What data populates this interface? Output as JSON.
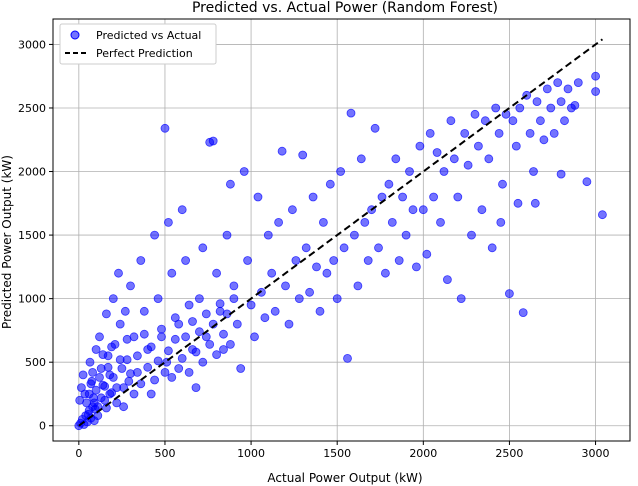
{
  "chart_data": {
    "type": "scatter",
    "title": "Predicted vs. Actual Power (Random Forest)",
    "xlabel": "Actual Power Output (kW)",
    "ylabel": "Predicted Power Output (kW)",
    "xlim": [
      -150,
      3200
    ],
    "ylim": [
      -120,
      3200
    ],
    "xticks": [
      0,
      500,
      1000,
      1500,
      2000,
      2500,
      3000
    ],
    "yticks": [
      0,
      500,
      1000,
      1500,
      2000,
      2500,
      3000
    ],
    "grid": true,
    "legend_position": "upper-left",
    "series": [
      {
        "name": "Predicted vs Actual",
        "kind": "scatter",
        "color": "#0000ff",
        "opacity": 0.55,
        "points": [
          [
            0,
            0
          ],
          [
            10,
            20
          ],
          [
            20,
            50
          ],
          [
            30,
            10
          ],
          [
            40,
            80
          ],
          [
            50,
            30
          ],
          [
            60,
            120
          ],
          [
            70,
            60
          ],
          [
            80,
            150
          ],
          [
            90,
            40
          ],
          [
            5,
            200
          ],
          [
            15,
            300
          ],
          [
            25,
            400
          ],
          [
            35,
            250
          ],
          [
            45,
            180
          ],
          [
            55,
            90
          ],
          [
            65,
            500
          ],
          [
            75,
            350
          ],
          [
            85,
            220
          ],
          [
            95,
            130
          ],
          [
            100,
            600
          ],
          [
            110,
            80
          ],
          [
            120,
            700
          ],
          [
            130,
            450
          ],
          [
            140,
            320
          ],
          [
            150,
            200
          ],
          [
            160,
            880
          ],
          [
            170,
            550
          ],
          [
            180,
            400
          ],
          [
            190,
            260
          ],
          [
            200,
            1000
          ],
          [
            210,
            640
          ],
          [
            220,
            300
          ],
          [
            230,
            1200
          ],
          [
            240,
            800
          ],
          [
            250,
            450
          ],
          [
            260,
            150
          ],
          [
            270,
            900
          ],
          [
            280,
            520
          ],
          [
            290,
            350
          ],
          [
            300,
            1100
          ],
          [
            320,
            700
          ],
          [
            340,
            420
          ],
          [
            360,
            1300
          ],
          [
            380,
            900
          ],
          [
            400,
            600
          ],
          [
            420,
            250
          ],
          [
            440,
            1500
          ],
          [
            460,
            1000
          ],
          [
            480,
            700
          ],
          [
            500,
            2340
          ],
          [
            510,
            500
          ],
          [
            520,
            1600
          ],
          [
            540,
            1200
          ],
          [
            560,
            850
          ],
          [
            580,
            450
          ],
          [
            600,
            1700
          ],
          [
            620,
            1300
          ],
          [
            640,
            950
          ],
          [
            660,
            600
          ],
          [
            680,
            300
          ],
          [
            700,
            1000
          ],
          [
            720,
            1400
          ],
          [
            740,
            700
          ],
          [
            760,
            2230
          ],
          [
            780,
            2240
          ],
          [
            800,
            1200
          ],
          [
            820,
            900
          ],
          [
            840,
            600
          ],
          [
            860,
            1500
          ],
          [
            880,
            1900
          ],
          [
            900,
            1100
          ],
          [
            920,
            800
          ],
          [
            940,
            450
          ],
          [
            960,
            2000
          ],
          [
            980,
            1300
          ],
          [
            1000,
            950
          ],
          [
            1020,
            700
          ],
          [
            1040,
            1800
          ],
          [
            1060,
            1050
          ],
          [
            1080,
            850
          ],
          [
            1100,
            1500
          ],
          [
            1120,
            1200
          ],
          [
            1140,
            900
          ],
          [
            1160,
            1600
          ],
          [
            1180,
            2160
          ],
          [
            1200,
            1100
          ],
          [
            1220,
            800
          ],
          [
            1240,
            1700
          ],
          [
            1260,
            1300
          ],
          [
            1280,
            1000
          ],
          [
            1300,
            2130
          ],
          [
            1320,
            1400
          ],
          [
            1340,
            1050
          ],
          [
            1360,
            1800
          ],
          [
            1380,
            1250
          ],
          [
            1400,
            900
          ],
          [
            1420,
            1600
          ],
          [
            1440,
            1200
          ],
          [
            1460,
            1900
          ],
          [
            1480,
            1300
          ],
          [
            1500,
            1000
          ],
          [
            1520,
            2000
          ],
          [
            1540,
            1400
          ],
          [
            1560,
            530
          ],
          [
            1580,
            2460
          ],
          [
            1600,
            1500
          ],
          [
            1620,
            1100
          ],
          [
            1640,
            2100
          ],
          [
            1660,
            1600
          ],
          [
            1680,
            1300
          ],
          [
            1700,
            1700
          ],
          [
            1720,
            2340
          ],
          [
            1740,
            1400
          ],
          [
            1760,
            1800
          ],
          [
            1780,
            1200
          ],
          [
            1800,
            1900
          ],
          [
            1820,
            1600
          ],
          [
            1840,
            2100
          ],
          [
            1860,
            1300
          ],
          [
            1880,
            1800
          ],
          [
            1900,
            1500
          ],
          [
            1920,
            2000
          ],
          [
            1940,
            1700
          ],
          [
            1960,
            1250
          ],
          [
            1980,
            2200
          ],
          [
            2000,
            1700
          ],
          [
            2020,
            1350
          ],
          [
            2040,
            2300
          ],
          [
            2060,
            1800
          ],
          [
            2080,
            2150
          ],
          [
            2100,
            1600
          ],
          [
            2120,
            2000
          ],
          [
            2140,
            1150
          ],
          [
            2160,
            2400
          ],
          [
            2180,
            2100
          ],
          [
            2200,
            1800
          ],
          [
            2220,
            1000
          ],
          [
            2240,
            2300
          ],
          [
            2260,
            2050
          ],
          [
            2280,
            1500
          ],
          [
            2300,
            2450
          ],
          [
            2320,
            2200
          ],
          [
            2340,
            1700
          ],
          [
            2360,
            2400
          ],
          [
            2380,
            2100
          ],
          [
            2400,
            1400
          ],
          [
            2420,
            2500
          ],
          [
            2440,
            2300
          ],
          [
            2460,
            1900
          ],
          [
            2480,
            2450
          ],
          [
            2500,
            1040
          ],
          [
            2520,
            2400
          ],
          [
            2540,
            2200
          ],
          [
            2560,
            2500
          ],
          [
            2580,
            890
          ],
          [
            2600,
            2600
          ],
          [
            2620,
            2300
          ],
          [
            2640,
            2000
          ],
          [
            2660,
            2550
          ],
          [
            2680,
            2400
          ],
          [
            2700,
            2250
          ],
          [
            2720,
            2650
          ],
          [
            2740,
            2500
          ],
          [
            2760,
            2300
          ],
          [
            2780,
            2700
          ],
          [
            2800,
            2550
          ],
          [
            2820,
            2400
          ],
          [
            2840,
            2650
          ],
          [
            2860,
            2500
          ],
          [
            2900,
            2700
          ],
          [
            2950,
            1920
          ],
          [
            3000,
            2750
          ],
          [
            3040,
            1660
          ],
          [
            3000,
            2630
          ],
          [
            2880,
            2520
          ],
          [
            2800,
            1980
          ],
          [
            2650,
            1750
          ],
          [
            2550,
            1750
          ],
          [
            2450,
            1600
          ],
          [
            60,
            250
          ],
          [
            70,
            330
          ],
          [
            80,
            420
          ],
          [
            90,
            180
          ],
          [
            100,
            280
          ],
          [
            110,
            150
          ],
          [
            120,
            380
          ],
          [
            130,
            220
          ],
          [
            140,
            560
          ],
          [
            150,
            310
          ],
          [
            160,
            140
          ],
          [
            170,
            460
          ],
          [
            180,
            250
          ],
          [
            190,
            620
          ],
          [
            200,
            380
          ],
          [
            220,
            180
          ],
          [
            240,
            520
          ],
          [
            260,
            300
          ],
          [
            280,
            680
          ],
          [
            300,
            410
          ],
          [
            320,
            250
          ],
          [
            340,
            550
          ],
          [
            360,
            330
          ],
          [
            380,
            720
          ],
          [
            400,
            460
          ],
          [
            420,
            620
          ],
          [
            440,
            360
          ],
          [
            460,
            510
          ],
          [
            480,
            760
          ],
          [
            500,
            420
          ],
          [
            520,
            590
          ],
          [
            540,
            380
          ],
          [
            560,
            680
          ],
          [
            580,
            800
          ],
          [
            600,
            530
          ],
          [
            620,
            700
          ],
          [
            640,
            420
          ],
          [
            660,
            820
          ],
          [
            680,
            580
          ],
          [
            700,
            740
          ],
          [
            720,
            500
          ],
          [
            740,
            880
          ],
          [
            760,
            640
          ],
          [
            780,
            800
          ],
          [
            800,
            560
          ],
          [
            820,
            960
          ],
          [
            840,
            720
          ],
          [
            860,
            880
          ],
          [
            880,
            640
          ],
          [
            900,
            1000
          ]
        ]
      },
      {
        "name": "Perfect Prediction",
        "kind": "line",
        "color": "#000000",
        "dashed": true,
        "points": [
          [
            0,
            0
          ],
          [
            3040,
            3040
          ]
        ]
      }
    ]
  }
}
